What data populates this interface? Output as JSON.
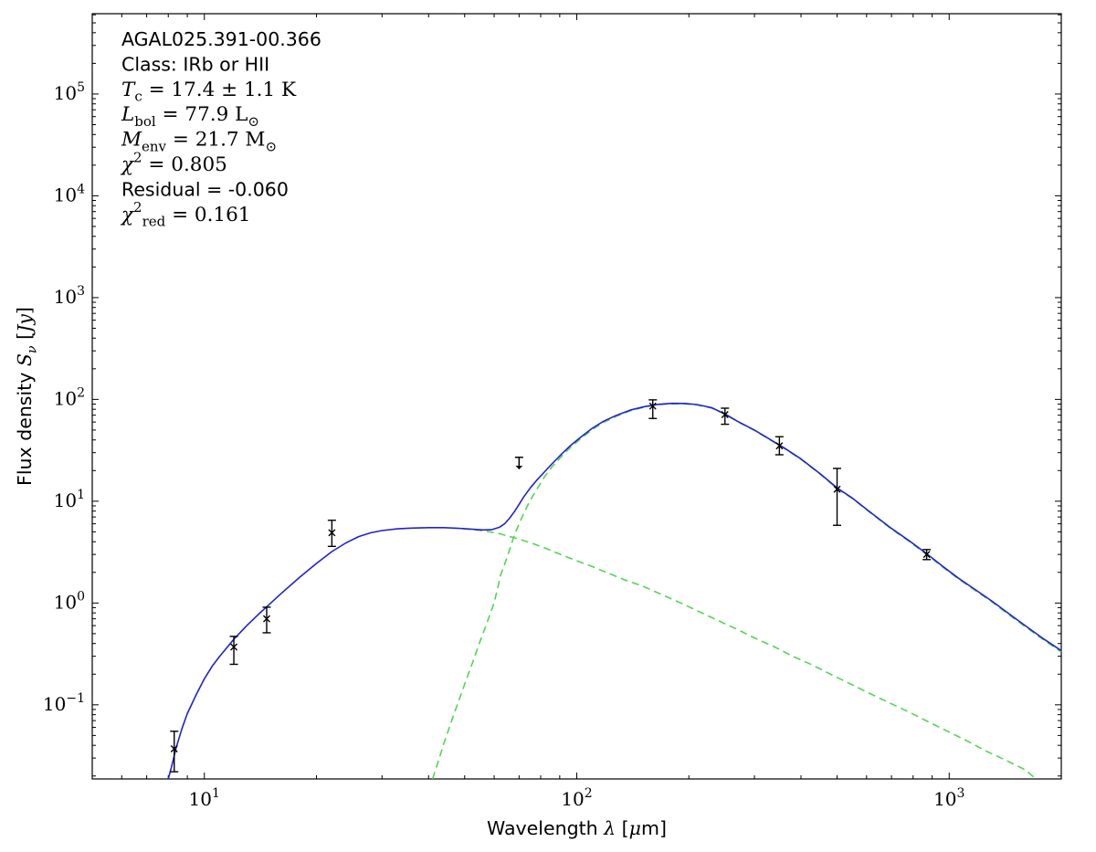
{
  "figure": {
    "annotation_lines": [
      [
        [
          "AGAL025.391-00.366",
          "sans"
        ]
      ],
      [
        [
          "Class: IRb or HII",
          "sans"
        ]
      ],
      [
        [
          "T",
          "it"
        ],
        [
          "c",
          "subrm"
        ],
        [
          " = 17.4 ± 1.1 K",
          "rm"
        ]
      ],
      [
        [
          "L",
          "it"
        ],
        [
          "bol",
          "subrm"
        ],
        [
          " = 77.9 L",
          "rm"
        ],
        [
          "⊙",
          "subrm"
        ]
      ],
      [
        [
          "M",
          "it"
        ],
        [
          "env",
          "subrm"
        ],
        [
          " = 21.7 M",
          "rm"
        ],
        [
          "⊙",
          "subrm"
        ]
      ],
      [
        [
          "χ",
          "it"
        ],
        [
          "2",
          "sup"
        ],
        [
          " = 0.805",
          "rm"
        ]
      ],
      [
        [
          "Residual = -0.060",
          "sans"
        ]
      ],
      [
        [
          "χ",
          "it"
        ],
        [
          "2",
          "sup"
        ],
        [
          "red",
          "subrm"
        ],
        [
          " = 0.161",
          "rm"
        ]
      ]
    ],
    "xlabel_segments": [
      [
        "Wavelength ",
        "sans"
      ],
      [
        "λ",
        "it"
      ],
      [
        " [",
        "sans"
      ],
      [
        "μ",
        "it"
      ],
      [
        "m]",
        "sans"
      ]
    ],
    "ylabel_segments": [
      [
        "Flux density ",
        "sans"
      ],
      [
        "S",
        "it"
      ],
      [
        "ν",
        "sub"
      ],
      [
        " [",
        "rm"
      ],
      [
        "Jy",
        "it"
      ],
      [
        "]",
        "rm"
      ]
    ]
  },
  "chart_data": {
    "type": "line",
    "title": "",
    "xlabel": "Wavelength λ [μm]",
    "ylabel": "Flux density Sν [Jy]",
    "x_scale": "log",
    "y_scale": "log",
    "xlim": [
      5,
      2000
    ],
    "ylim": [
      0.0187,
      615000
    ],
    "x_tick_exponents": [
      1,
      2,
      3
    ],
    "y_tick_exponents": [
      5,
      4,
      3,
      2,
      1,
      0,
      -1
    ],
    "grid": false,
    "legend": "none",
    "annotation_text": [
      "AGAL025.391-00.366",
      "Class: IRb or HII",
      "T_c = 17.4 ± 1.1 K",
      "L_bol = 77.9 L_⊙",
      "M_env = 21.7 M_⊙",
      "χ² = 0.805",
      "Residual = -0.060",
      "χ²_red = 0.161"
    ],
    "source_parameters": {
      "name": "AGAL025.391-00.366",
      "class": "IRb or HII",
      "T_c_K": "17.4 ± 1.1",
      "L_bol_Lsun": 77.9,
      "M_env_Msun": 21.7,
      "chi2": 0.805,
      "residual": -0.06,
      "chi2_red": 0.161
    },
    "colors": {
      "total_model": "#2222cc",
      "components": "#55d455",
      "data": "#000000",
      "axes": "#000000"
    },
    "series": [
      {
        "name": "total-model",
        "style": "solid",
        "color": "#2222cc",
        "points": [
          [
            8.0,
            0.0187
          ],
          [
            8.15,
            0.024
          ],
          [
            8.4,
            0.038
          ],
          [
            8.7,
            0.058
          ],
          [
            9,
            0.082
          ],
          [
            9.5,
            0.125
          ],
          [
            10,
            0.18
          ],
          [
            10.5,
            0.24
          ],
          [
            11,
            0.3
          ],
          [
            12,
            0.44
          ],
          [
            13,
            0.6
          ],
          [
            14,
            0.78
          ],
          [
            15,
            0.98
          ],
          [
            16,
            1.22
          ],
          [
            18,
            1.78
          ],
          [
            20,
            2.45
          ],
          [
            22,
            3.2
          ],
          [
            24,
            3.9
          ],
          [
            26,
            4.5
          ],
          [
            28,
            4.9
          ],
          [
            30,
            5.15
          ],
          [
            33,
            5.35
          ],
          [
            36,
            5.45
          ],
          [
            40,
            5.5
          ],
          [
            44,
            5.5
          ],
          [
            48,
            5.42
          ],
          [
            52,
            5.32
          ],
          [
            56,
            5.22
          ],
          [
            59,
            5.25
          ],
          [
            62,
            5.55
          ],
          [
            64,
            6.0
          ],
          [
            66,
            6.8
          ],
          [
            68,
            7.9
          ],
          [
            70,
            9.3
          ],
          [
            72,
            11
          ],
          [
            75,
            13.5
          ],
          [
            78,
            16
          ],
          [
            82,
            19.5
          ],
          [
            86,
            23.5
          ],
          [
            91,
            29
          ],
          [
            96,
            35
          ],
          [
            102,
            42
          ],
          [
            110,
            52
          ],
          [
            118,
            61
          ],
          [
            128,
            70
          ],
          [
            140,
            79
          ],
          [
            152,
            85
          ],
          [
            165,
            89.5
          ],
          [
            180,
            91.5
          ],
          [
            195,
            91.3
          ],
          [
            210,
            89
          ],
          [
            230,
            83
          ],
          [
            250,
            72
          ],
          [
            270,
            61
          ],
          [
            300,
            50
          ],
          [
            330,
            40.5
          ],
          [
            360,
            33.5
          ],
          [
            400,
            26
          ],
          [
            450,
            18.7
          ],
          [
            500,
            13.5
          ],
          [
            550,
            10.7
          ],
          [
            620,
            7.6
          ],
          [
            700,
            5.4
          ],
          [
            780,
            4.1
          ],
          [
            870,
            3.05
          ],
          [
            960,
            2.3
          ],
          [
            1060,
            1.75
          ],
          [
            1160,
            1.4
          ],
          [
            1300,
            1.05
          ],
          [
            1450,
            0.78
          ],
          [
            1600,
            0.6
          ],
          [
            1800,
            0.44
          ],
          [
            2000,
            0.34
          ]
        ]
      },
      {
        "name": "warm-component",
        "style": "dashed",
        "color": "#55d455",
        "points": [
          [
            46,
            5.46
          ],
          [
            50,
            5.35
          ],
          [
            54,
            5.2
          ],
          [
            58,
            5.02
          ],
          [
            62,
            4.8
          ],
          [
            66,
            4.5
          ],
          [
            70,
            4.25
          ],
          [
            76,
            3.85
          ],
          [
            83,
            3.42
          ],
          [
            90,
            3.02
          ],
          [
            100,
            2.6
          ],
          [
            110,
            2.28
          ],
          [
            122,
            1.95
          ],
          [
            135,
            1.68
          ],
          [
            150,
            1.47
          ],
          [
            170,
            1.2
          ],
          [
            190,
            1.0
          ],
          [
            215,
            0.81
          ],
          [
            240,
            0.67
          ],
          [
            270,
            0.55
          ],
          [
            300,
            0.455
          ],
          [
            340,
            0.37
          ],
          [
            380,
            0.3
          ],
          [
            430,
            0.245
          ],
          [
            480,
            0.2
          ],
          [
            540,
            0.162
          ],
          [
            610,
            0.13
          ],
          [
            690,
            0.105
          ],
          [
            780,
            0.085
          ],
          [
            880,
            0.068
          ],
          [
            990,
            0.055
          ],
          [
            1120,
            0.044
          ],
          [
            1260,
            0.035
          ],
          [
            1420,
            0.0285
          ],
          [
            1600,
            0.023
          ],
          [
            1710,
            0.0187
          ]
        ]
      },
      {
        "name": "cold-component",
        "style": "dashed",
        "color": "#55d455",
        "points": [
          [
            41,
            0.0187
          ],
          [
            42.5,
            0.028
          ],
          [
            44,
            0.042
          ],
          [
            46,
            0.068
          ],
          [
            48,
            0.105
          ],
          [
            50,
            0.16
          ],
          [
            52.5,
            0.26
          ],
          [
            55,
            0.42
          ],
          [
            57.5,
            0.65
          ],
          [
            60,
            1.0
          ],
          [
            62.5,
            1.9
          ],
          [
            65,
            2.8
          ],
          [
            67.5,
            4.3
          ],
          [
            70,
            6.0
          ],
          [
            72.5,
            8.0
          ],
          [
            75,
            10.2
          ],
          [
            78,
            13
          ],
          [
            82,
            17.5
          ],
          [
            86,
            22
          ],
          [
            91,
            27.5
          ],
          [
            96,
            33.5
          ],
          [
            102,
            40.5
          ],
          [
            110,
            50.5
          ],
          [
            118,
            59.5
          ],
          [
            128,
            68.5
          ],
          [
            140,
            77.8
          ],
          [
            152,
            84
          ],
          [
            165,
            88.6
          ],
          [
            180,
            90.8
          ],
          [
            195,
            90.6
          ],
          [
            210,
            88.3
          ],
          [
            230,
            82.4
          ],
          [
            250,
            71.4
          ],
          [
            270,
            60.5
          ],
          [
            300,
            49.6
          ],
          [
            330,
            40.2
          ],
          [
            360,
            33.2
          ],
          [
            400,
            25.8
          ],
          [
            450,
            18.5
          ],
          [
            500,
            13.35
          ],
          [
            550,
            10.6
          ],
          [
            620,
            7.5
          ],
          [
            700,
            5.33
          ],
          [
            780,
            4.03
          ],
          [
            870,
            3.0
          ],
          [
            960,
            2.26
          ],
          [
            1060,
            1.72
          ],
          [
            1160,
            1.37
          ],
          [
            1300,
            1.03
          ],
          [
            1450,
            0.76
          ],
          [
            1600,
            0.585
          ],
          [
            1800,
            0.43
          ],
          [
            2000,
            0.33
          ]
        ]
      }
    ],
    "data_points": [
      {
        "wavelength_um": 8.3,
        "flux_jy": 0.037,
        "err_lo": 0.022,
        "err_hi": 0.055,
        "upper_limit": false
      },
      {
        "wavelength_um": 12,
        "flux_jy": 0.37,
        "err_lo": 0.25,
        "err_hi": 0.47,
        "upper_limit": false
      },
      {
        "wavelength_um": 14.7,
        "flux_jy": 0.7,
        "err_lo": 0.51,
        "err_hi": 0.91,
        "upper_limit": false
      },
      {
        "wavelength_um": 22,
        "flux_jy": 4.9,
        "err_lo": 3.6,
        "err_hi": 6.5,
        "upper_limit": false
      },
      {
        "wavelength_um": 70,
        "flux_jy": 24,
        "err_lo": 20.5,
        "err_hi": 27,
        "upper_limit": true
      },
      {
        "wavelength_um": 160,
        "flux_jy": 86,
        "err_lo": 65,
        "err_hi": 99,
        "upper_limit": false
      },
      {
        "wavelength_um": 250,
        "flux_jy": 71,
        "err_lo": 57,
        "err_hi": 82,
        "upper_limit": false
      },
      {
        "wavelength_um": 350,
        "flux_jy": 35,
        "err_lo": 28.6,
        "err_hi": 43,
        "upper_limit": false
      },
      {
        "wavelength_um": 500,
        "flux_jy": 13.1,
        "err_lo": 5.8,
        "err_hi": 21,
        "upper_limit": false
      },
      {
        "wavelength_um": 870,
        "flux_jy": 3.0,
        "err_lo": 2.67,
        "err_hi": 3.35,
        "upper_limit": false
      }
    ]
  }
}
